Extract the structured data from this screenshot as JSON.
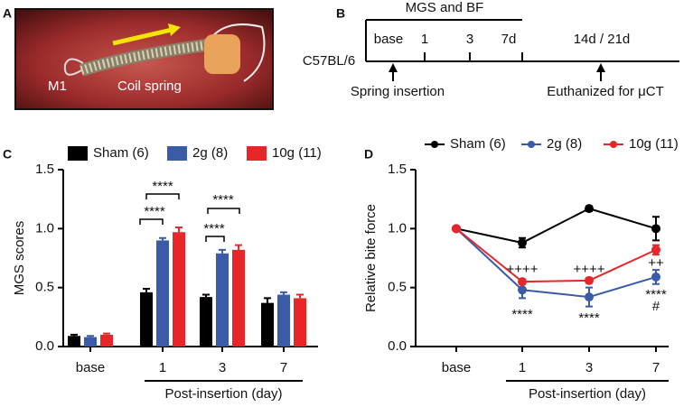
{
  "panels": {
    "labels": [
      "A",
      "B",
      "C",
      "D"
    ],
    "photo_labels": [
      "M1",
      "Coil spring"
    ],
    "timeline": {
      "header": "MGS and BF",
      "ticks": [
        "base",
        "1",
        "3",
        "7d",
        "14d / 21d"
      ],
      "strain": "C57BL/6",
      "events": [
        "Spring insertion",
        "Euthanized for μCT"
      ]
    }
  },
  "chart_data": [
    {
      "type": "bar",
      "y_label": "MGS scores",
      "x_label": "Post-insertion (day)",
      "categories": [
        "base",
        "1",
        "3",
        "7"
      ],
      "series": [
        {
          "name": "Sham (6)",
          "color": "#000000",
          "values": [
            0.09,
            0.46,
            0.42,
            0.37
          ],
          "errors": [
            0.01,
            0.03,
            0.02,
            0.04
          ]
        },
        {
          "name": "2g (8)",
          "color": "#3b5ba9",
          "values": [
            0.08,
            0.9,
            0.79,
            0.44
          ],
          "errors": [
            0.01,
            0.02,
            0.03,
            0.02
          ]
        },
        {
          "name": "10g (11)",
          "color": "#e8262a",
          "values": [
            0.1,
            0.97,
            0.82,
            0.41
          ],
          "errors": [
            0.01,
            0.04,
            0.04,
            0.03
          ]
        }
      ],
      "ylim": [
        0,
        1.5
      ],
      "yticks": [
        {
          "value": 0,
          "label": "0.0"
        },
        0.5,
        {
          "value": 1,
          "label": "1.0"
        },
        1.5
      ],
      "annotations": [
        "****",
        "****",
        "****",
        "****"
      ]
    },
    {
      "type": "line",
      "y_label": "Relative bite force",
      "x_label": "Post-insertion (day)",
      "categories": [
        "base",
        "1",
        "3",
        "7"
      ],
      "series": [
        {
          "name": "Sham (6)",
          "color": "#000000",
          "values": [
            1.0,
            0.88,
            1.17,
            1.0
          ],
          "errors": [
            0,
            0.04,
            0.02,
            0.1
          ]
        },
        {
          "name": "2g (8)",
          "color": "#3b5ba9",
          "values": [
            1.0,
            0.48,
            0.42,
            0.59
          ],
          "errors": [
            0,
            0.07,
            0.08,
            0.06
          ]
        },
        {
          "name": "10g (11)",
          "color": "#e8262a",
          "values": [
            1.0,
            0.55,
            0.56,
            0.82
          ],
          "errors": [
            0,
            0.02,
            0.02,
            0.04
          ]
        }
      ],
      "ylim": [
        0,
        1.5
      ],
      "yticks": [
        {
          "value": 0,
          "label": "0.0"
        },
        0.5,
        {
          "value": 1,
          "label": "1.0"
        },
        1.5
      ],
      "annotations": [
        "++++",
        "++++",
        "++",
        "****",
        "****",
        "****",
        "#"
      ]
    }
  ]
}
